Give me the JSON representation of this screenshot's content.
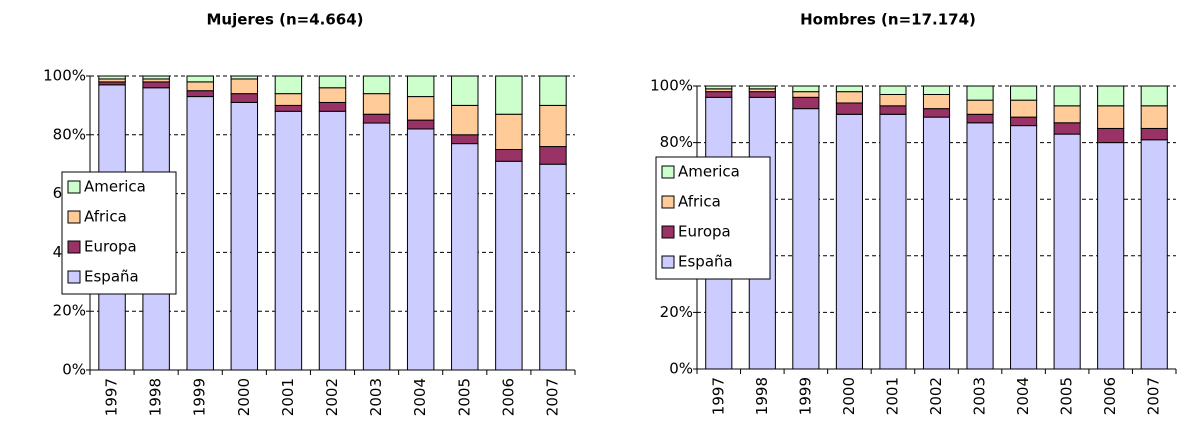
{
  "chart_data": [
    {
      "type": "bar",
      "stacked": true,
      "title": "Mujeres (n=4.664)",
      "categories": [
        "1997",
        "1998",
        "1999",
        "2000",
        "2001",
        "2002",
        "2003",
        "2004",
        "2005",
        "2006",
        "2007"
      ],
      "series": [
        {
          "name": "España",
          "color": "#ccccff",
          "values": [
            97,
            96,
            93,
            91,
            88,
            88,
            84,
            82,
            77,
            71,
            70
          ]
        },
        {
          "name": "Europa",
          "color": "#993366",
          "values": [
            1,
            2,
            2,
            3,
            2,
            3,
            3,
            3,
            3,
            4,
            6
          ]
        },
        {
          "name": "Africa",
          "color": "#ffcc99",
          "values": [
            1,
            1,
            3,
            5,
            4,
            5,
            7,
            8,
            10,
            12,
            14
          ]
        },
        {
          "name": "America",
          "color": "#ccffcc",
          "values": [
            1,
            1,
            2,
            1,
            6,
            4,
            6,
            7,
            10,
            13,
            10
          ]
        }
      ],
      "ylim": [
        0,
        100
      ],
      "yticks": [
        {
          "value": 0,
          "label": "0%"
        },
        {
          "value": 20,
          "label": "20%"
        },
        {
          "value": 40,
          "label": "40%"
        },
        {
          "value": 60,
          "label": "60%"
        },
        {
          "value": 80,
          "label": "80%"
        },
        {
          "value": 100,
          "label": "100%"
        }
      ],
      "grid": true,
      "legend": "left"
    },
    {
      "type": "bar",
      "stacked": true,
      "title": "Hombres (n=17.174)",
      "categories": [
        "1997",
        "1998",
        "1999",
        "2000",
        "2001",
        "2002",
        "2003",
        "2004",
        "2005",
        "2006",
        "2007"
      ],
      "series": [
        {
          "name": "España",
          "color": "#ccccff",
          "values": [
            96,
            96,
            92,
            90,
            90,
            89,
            87,
            86,
            83,
            80,
            81
          ]
        },
        {
          "name": "Europa",
          "color": "#993366",
          "values": [
            2,
            2,
            4,
            4,
            3,
            3,
            3,
            3,
            4,
            5,
            4
          ]
        },
        {
          "name": "Africa",
          "color": "#ffcc99",
          "values": [
            1,
            1,
            2,
            4,
            4,
            5,
            5,
            6,
            6,
            8,
            8
          ]
        },
        {
          "name": "America",
          "color": "#ccffcc",
          "values": [
            1,
            1,
            2,
            2,
            3,
            3,
            5,
            5,
            7,
            7,
            7
          ]
        }
      ],
      "ylim": [
        0,
        100
      ],
      "yticks": [
        {
          "value": 0,
          "label": "0%"
        },
        {
          "value": 20,
          "label": "20%"
        },
        {
          "value": 40,
          "label": "40%"
        },
        {
          "value": 60,
          "label": "60%"
        },
        {
          "value": 80,
          "label": "80%"
        },
        {
          "value": 100,
          "label": "100%"
        }
      ],
      "grid": true,
      "legend": "left"
    }
  ]
}
